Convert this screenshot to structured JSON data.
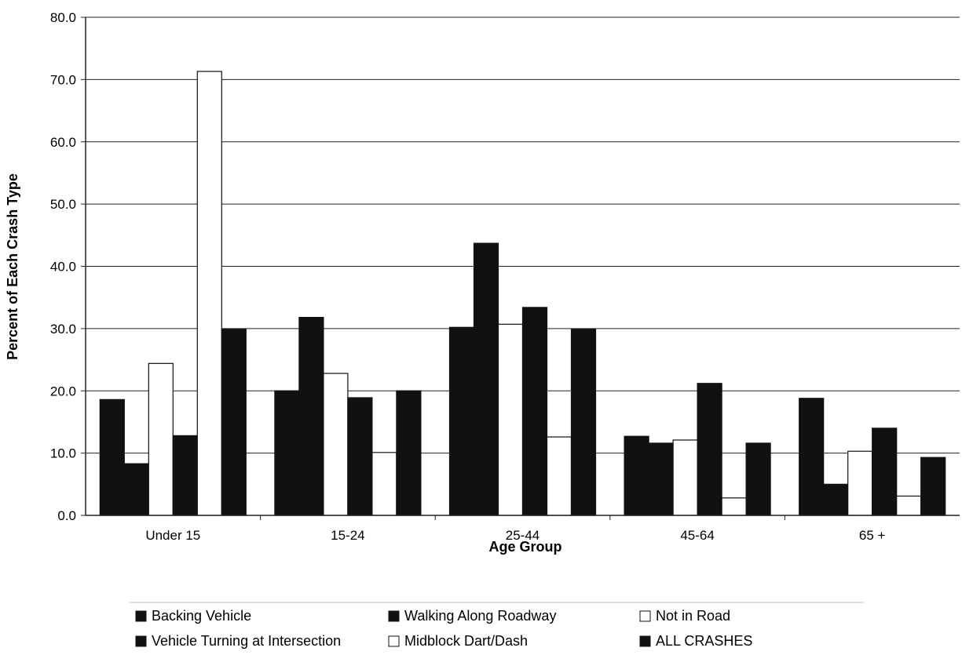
{
  "chart_data": {
    "type": "bar",
    "xlabel": "Age Group",
    "ylabel": "Percent of Each Crash Type",
    "ylim": [
      0,
      80
    ],
    "yticks": [
      "0.0",
      "10.0",
      "20.0",
      "30.0",
      "40.0",
      "50.0",
      "60.0",
      "70.0",
      "80.0"
    ],
    "grid": "horizontal",
    "legend_position": "bottom",
    "categories": [
      "Under 15",
      "15-24",
      "25-44",
      "45-64",
      "65 +"
    ],
    "series": [
      {
        "name": "Backing Vehicle",
        "fill": "#111111",
        "values": [
          18.6,
          20.0,
          30.2,
          12.7,
          18.8
        ]
      },
      {
        "name": "Walking Along Roadway",
        "fill": "#111111",
        "values": [
          8.3,
          31.8,
          43.7,
          11.6,
          5.0
        ]
      },
      {
        "name": "Not in Road",
        "fill": "#ffffff",
        "values": [
          24.4,
          22.8,
          30.7,
          12.1,
          10.3
        ]
      },
      {
        "name": "Vehicle Turning at Intersection",
        "fill": "#111111",
        "values": [
          12.8,
          18.9,
          33.4,
          21.2,
          14.0
        ]
      },
      {
        "name": "Midblock Dart/Dash",
        "fill": "#ffffff",
        "values": [
          71.3,
          10.1,
          12.6,
          2.8,
          3.1
        ]
      },
      {
        "name": "ALL CRASHES",
        "fill": "#111111",
        "values": [
          29.9,
          20.0,
          29.9,
          11.6,
          9.3
        ]
      }
    ]
  },
  "legend": {
    "items": [
      {
        "label": "Backing Vehicle",
        "fill": "#111111"
      },
      {
        "label": "Walking Along Roadway",
        "fill": "#111111"
      },
      {
        "label": "Not in Road",
        "fill": "#ffffff"
      },
      {
        "label": "Vehicle Turning at Intersection",
        "fill": "#111111"
      },
      {
        "label": "Midblock Dart/Dash",
        "fill": "#ffffff"
      },
      {
        "label": "ALL CRASHES",
        "fill": "#111111"
      }
    ]
  }
}
